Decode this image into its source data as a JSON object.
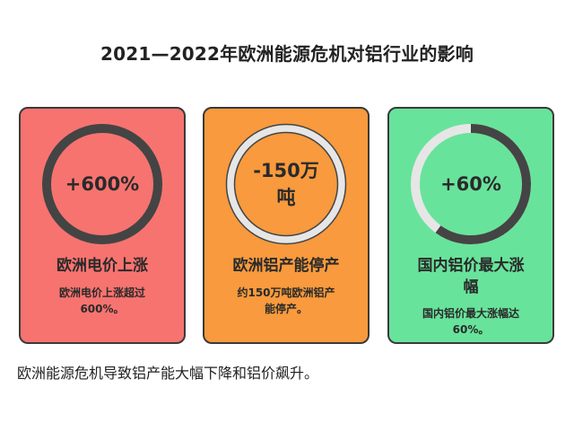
{
  "title": "2021—2022年欧洲能源危机对铝行业的影响",
  "cards": [
    {
      "value": "+600%",
      "heading": "欧洲电价上涨",
      "text_lines": [
        "欧洲电价上涨超过",
        "600%。"
      ],
      "background": "#f7736f",
      "ring_fill": 1.0
    },
    {
      "value_lines": [
        "-150万",
        "吨"
      ],
      "heading": "欧洲铝产能停产",
      "text_lines": [
        "约150万吨欧洲铝产",
        "能停产。"
      ],
      "background": "#f89a3d",
      "ring_fill": 0.0
    },
    {
      "value": "+60%",
      "heading_lines": [
        "国内铝价最大涨",
        "幅"
      ],
      "text_lines": [
        "国内铝价最大涨幅达",
        "60%。"
      ],
      "background": "#68e39b",
      "ring_fill": 0.6
    }
  ],
  "caption": "欧洲能源危机导致铝产能大幅下降和铝价飙升。",
  "colors": {
    "ring_dark": "#444444",
    "ring_light": "#e0e0e0",
    "border": "#3a3a3a"
  }
}
